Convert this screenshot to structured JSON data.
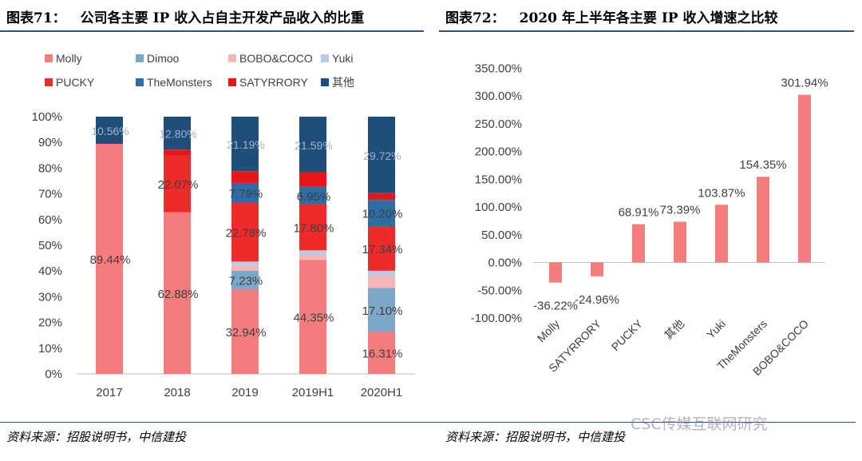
{
  "left_header": {
    "number": "图表71：",
    "title": "公司各主要 IP 收入占自主开发产品收入的比重"
  },
  "right_header": {
    "number": "图表72：",
    "title": "2020 年上半年各主要 IP 收入增速之比较"
  },
  "left_source": "资料来源：招股说明书，中信建投",
  "right_source": "资料来源：招股说明书，中信建投",
  "watermark": "CSC传媒互联网研究",
  "colors": {
    "Molly": "#f47c7c",
    "Dimoo": "#7ba7c9",
    "BOBO&COCO": "#f7b5b5",
    "Yuki": "#b8cce4",
    "PUCKY": "#ee2a2a",
    "TheMonsters": "#2e6da4",
    "SATYRRORY": "#e8151b",
    "其他": "#1f4e79",
    "growth": "#f47c7c",
    "axis": "#bfbfbf"
  },
  "chart_data": [
    {
      "type": "bar",
      "stacked": true,
      "title": "公司各主要 IP 收入占自主开发产品收入的比重",
      "categories": [
        "2017",
        "2018",
        "2019",
        "2019H1",
        "2020H1"
      ],
      "ylim": [
        0,
        100
      ],
      "yticks": [
        "0%",
        "10%",
        "20%",
        "30%",
        "40%",
        "50%",
        "60%",
        "70%",
        "80%",
        "90%",
        "100%"
      ],
      "legend": [
        "Molly",
        "Dimoo",
        "BOBO&COCO",
        "Yuki",
        "PUCKY",
        "TheMonsters",
        "SATYRRORY",
        "其他"
      ],
      "series": [
        {
          "name": "Molly",
          "values": [
            89.44,
            62.88,
            32.94,
            44.35,
            16.31
          ]
        },
        {
          "name": "Dimoo",
          "values": [
            0,
            0,
            7.23,
            0,
            17.1
          ]
        },
        {
          "name": "BOBO&COCO",
          "values": [
            0,
            0,
            2.0,
            1.9,
            4.5
          ]
        },
        {
          "name": "Yuki",
          "values": [
            0,
            0,
            1.5,
            1.8,
            2.2
          ]
        },
        {
          "name": "PUCKY",
          "values": [
            0,
            22.07,
            22.78,
            17.8,
            17.34
          ]
        },
        {
          "name": "TheMonsters",
          "values": [
            0,
            0,
            7.79,
            6.95,
            10.2
          ]
        },
        {
          "name": "SATYRRORY",
          "values": [
            0,
            2.25,
            4.57,
            5.6,
            2.63
          ]
        },
        {
          "name": "其他",
          "values": [
            10.56,
            12.8,
            21.19,
            21.59,
            29.72
          ]
        }
      ],
      "labels": [
        {
          "category": "2017",
          "series": "Molly",
          "text": "89.44%"
        },
        {
          "category": "2017",
          "series": "其他",
          "text": "10.56%"
        },
        {
          "category": "2018",
          "series": "Molly",
          "text": "62.88%"
        },
        {
          "category": "2018",
          "series": "PUCKY",
          "text": "22.07%"
        },
        {
          "category": "2018",
          "series": "其他",
          "text": "12.80%"
        },
        {
          "category": "2019",
          "series": "Molly",
          "text": "32.94%"
        },
        {
          "category": "2019",
          "series": "Dimoo",
          "text": "7.23%"
        },
        {
          "category": "2019",
          "series": "PUCKY",
          "text": "22.78%"
        },
        {
          "category": "2019",
          "series": "TheMonsters",
          "text": "7.79%"
        },
        {
          "category": "2019",
          "series": "其他",
          "text": "21.19%"
        },
        {
          "category": "2019H1",
          "series": "Molly",
          "text": "44.35%"
        },
        {
          "category": "2019H1",
          "series": "PUCKY",
          "text": "17.80%"
        },
        {
          "category": "2019H1",
          "series": "TheMonsters",
          "text": "6.95%"
        },
        {
          "category": "2019H1",
          "series": "其他",
          "text": "21.59%"
        },
        {
          "category": "2020H1",
          "series": "Molly",
          "text": "16.31%"
        },
        {
          "category": "2020H1",
          "series": "Dimoo",
          "text": "17.10%"
        },
        {
          "category": "2020H1",
          "series": "PUCKY",
          "text": "17.34%"
        },
        {
          "category": "2020H1",
          "series": "TheMonsters",
          "text": "10.20%"
        },
        {
          "category": "2020H1",
          "series": "其他",
          "text": "29.72%"
        }
      ]
    },
    {
      "type": "bar",
      "title": "2020 年上半年各主要 IP 收入增速之比较",
      "categories": [
        "Molly",
        "SATYRRORY",
        "PUCKY",
        "其他",
        "Yuki",
        "TheMonsters",
        "BOBO&COCO"
      ],
      "values": [
        -36.22,
        -24.96,
        68.91,
        73.39,
        103.87,
        154.35,
        301.94
      ],
      "value_labels": [
        "-36.22%",
        "-24.96%",
        "68.91%",
        "73.39%",
        "103.87%",
        "154.35%",
        "301.94%"
      ],
      "ylim": [
        -100,
        350
      ],
      "yticks": [
        "-100.00%",
        "-50.00%",
        "0.00%",
        "50.00%",
        "100.00%",
        "150.00%",
        "200.00%",
        "250.00%",
        "300.00%",
        "350.00%"
      ]
    }
  ]
}
